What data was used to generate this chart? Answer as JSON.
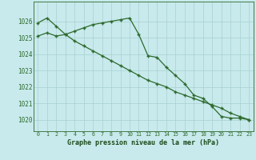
{
  "series1": [
    1025.9,
    1026.2,
    1025.7,
    1025.2,
    1025.4,
    1025.6,
    1025.8,
    1025.9,
    1026.0,
    1026.1,
    1026.2,
    1025.2,
    1023.9,
    1023.8,
    1023.2,
    1022.7,
    1022.2,
    1021.5,
    1021.3,
    1020.8,
    1020.2,
    1020.1,
    1020.1,
    1020.0
  ],
  "series2": [
    1025.1,
    1025.3,
    1025.1,
    1025.2,
    1024.8,
    1024.5,
    1024.2,
    1023.9,
    1023.6,
    1023.3,
    1023.0,
    1022.7,
    1022.4,
    1022.2,
    1022.0,
    1021.7,
    1021.5,
    1021.3,
    1021.1,
    1020.9,
    1020.7,
    1020.4,
    1020.2,
    1020.0
  ],
  "x": [
    0,
    1,
    2,
    3,
    4,
    5,
    6,
    7,
    8,
    9,
    10,
    11,
    12,
    13,
    14,
    15,
    16,
    17,
    18,
    19,
    20,
    21,
    22,
    23
  ],
  "ylim_min": 1019.3,
  "ylim_max": 1027.2,
  "yticks": [
    1020,
    1021,
    1022,
    1023,
    1024,
    1025,
    1026
  ],
  "line_color": "#2d6a2d",
  "bg_color": "#c8eaec",
  "grid_color": "#a8d0d2",
  "xlabel": "Graphe pression niveau de la mer (hPa)",
  "xlabel_color": "#1a4a1a"
}
